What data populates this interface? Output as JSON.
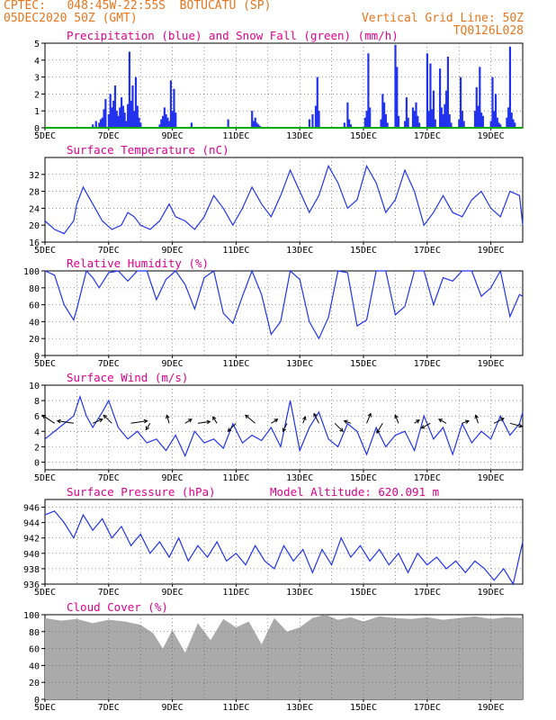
{
  "header": {
    "line1": "CPTEC:   048:45W-22:55S  BOTUCATU (SP)",
    "line2": "05DEC2020 50Z (GMT)",
    "grid_line": "Vertical Grid Line: 50Z",
    "code": "TQ0126L028"
  },
  "colors": {
    "header": "#e8761e",
    "title": "#e0008a",
    "series": "#2233ee",
    "snow": "#00aa00",
    "cloud": "#aaaaaa",
    "grid": "#555555"
  },
  "x_axis": {
    "dates": [
      "5DEC",
      "7DEC",
      "9DEC",
      "11DEC",
      "13DEC",
      "15DEC",
      "17DEC",
      "19DEC"
    ]
  },
  "chart_data": [
    {
      "id": "precip",
      "type": "bar",
      "title": "Precipitation (blue) and Snow Fall (green) (mm/h)",
      "ylim": [
        0,
        5
      ],
      "yticks": [
        0,
        1,
        2,
        3,
        4,
        5
      ],
      "series": [
        {
          "name": "blue",
          "x": [
            1.5,
            1.6,
            1.7,
            1.75,
            1.8,
            1.85,
            1.9,
            2.0,
            2.05,
            2.1,
            2.15,
            2.2,
            2.25,
            2.3,
            2.35,
            2.4,
            2.45,
            2.5,
            2.55,
            2.6,
            2.65,
            2.7,
            2.75,
            2.8,
            2.85,
            2.9,
            2.95,
            3.0,
            3.6,
            3.65,
            3.7,
            3.75,
            3.8,
            3.85,
            3.9,
            3.95,
            4.0,
            4.05,
            4.1,
            4.6,
            5.75,
            6.5,
            6.55,
            6.6,
            6.65,
            6.7,
            6.75,
            8.3,
            8.4,
            8.5,
            8.55,
            8.6,
            9.4,
            9.5,
            9.55,
            9.6,
            10.05,
            10.1,
            10.15,
            10.2,
            10.55,
            10.6,
            10.65,
            10.7,
            10.75,
            11.0,
            11.05,
            11.1,
            11.3,
            11.35,
            11.4,
            11.55,
            11.6,
            11.65,
            11.7,
            11.75,
            12.0,
            12.05,
            12.1,
            12.15,
            12.2,
            12.25,
            12.4,
            12.45,
            12.5,
            12.55,
            12.6,
            12.65,
            12.7,
            12.75,
            13.0,
            13.05,
            13.1,
            13.15,
            13.5,
            13.55,
            13.6,
            13.65,
            13.7,
            13.75,
            14.0,
            14.05,
            14.1,
            14.15,
            14.2,
            14.25,
            14.3,
            14.5,
            14.55,
            14.6,
            14.65,
            14.7,
            14.75
          ],
          "values": [
            0.2,
            0.4,
            0.3,
            0.5,
            0.6,
            1.1,
            1.7,
            0.8,
            2.0,
            1.2,
            1.6,
            2.5,
            1.0,
            0.7,
            1.2,
            1.8,
            1.3,
            0.9,
            0.4,
            1.4,
            4.5,
            1.6,
            2.5,
            1.0,
            3.0,
            1.3,
            0.6,
            0.3,
            0.2,
            0.5,
            0.7,
            1.2,
            0.8,
            0.6,
            0.4,
            2.8,
            1.0,
            2.3,
            0.9,
            0.3,
            0.5,
            1.0,
            0.4,
            0.6,
            0.3,
            0.2,
            0.1,
            0.5,
            0.8,
            1.3,
            3.0,
            1.0,
            0.3,
            1.5,
            0.5,
            0.2,
            0.6,
            1.0,
            4.4,
            1.2,
            0.5,
            2.0,
            1.5,
            0.8,
            0.3,
            4.9,
            3.6,
            0.7,
            0.4,
            1.8,
            0.6,
            1.2,
            1.0,
            1.5,
            0.7,
            0.3,
            4.4,
            1.0,
            3.8,
            1.1,
            2.2,
            0.5,
            3.5,
            1.2,
            0.8,
            1.4,
            2.2,
            4.2,
            0.8,
            0.3,
            0.5,
            3.0,
            1.0,
            0.4,
            1.0,
            2.4,
            1.3,
            3.6,
            0.9,
            0.7,
            0.4,
            3.0,
            1.0,
            2.0,
            0.6,
            0.3,
            0.2,
            0.6,
            1.2,
            4.8,
            0.9,
            0.5,
            0.3
          ]
        },
        {
          "name": "green",
          "x": [
            0,
            15
          ],
          "values": [
            0,
            0
          ]
        }
      ]
    },
    {
      "id": "temp",
      "type": "line",
      "title": "Surface Temperature (nC)",
      "ylim": [
        16,
        36
      ],
      "yticks": [
        16,
        20,
        24,
        28,
        32
      ],
      "x": [
        0.0,
        0.3,
        0.6,
        0.9,
        1.0,
        1.2,
        1.5,
        1.8,
        2.1,
        2.4,
        2.6,
        2.8,
        3.0,
        3.3,
        3.6,
        3.9,
        4.1,
        4.4,
        4.7,
        5.0,
        5.3,
        5.6,
        5.9,
        6.2,
        6.5,
        6.8,
        7.1,
        7.4,
        7.7,
        8.0,
        8.3,
        8.6,
        8.9,
        9.2,
        9.5,
        9.8,
        10.1,
        10.4,
        10.7,
        11.0,
        11.3,
        11.6,
        11.9,
        12.2,
        12.5,
        12.8,
        13.1,
        13.4,
        13.7,
        14.0,
        14.3,
        14.6,
        14.9,
        15.0
      ],
      "values": [
        21,
        19,
        18,
        21,
        25,
        29,
        25,
        21,
        19,
        20,
        23,
        22,
        20,
        19,
        21,
        25,
        22,
        21,
        19,
        22,
        27,
        24,
        20,
        24,
        29,
        25,
        22,
        27,
        33,
        28,
        23,
        27,
        34,
        30,
        24,
        26,
        34,
        30,
        23,
        26,
        33,
        28,
        20,
        23,
        27,
        23,
        22,
        26,
        28,
        24,
        22,
        28,
        27,
        20
      ]
    },
    {
      "id": "rh",
      "type": "line",
      "title": "Relative Humidity (%)",
      "ylim": [
        0,
        100
      ],
      "yticks": [
        0,
        20,
        40,
        60,
        80,
        100
      ],
      "x": [
        0.0,
        0.3,
        0.6,
        0.9,
        1.0,
        1.3,
        1.5,
        1.7,
        2.0,
        2.3,
        2.6,
        2.9,
        3.2,
        3.5,
        3.8,
        4.1,
        4.4,
        4.7,
        5.0,
        5.3,
        5.6,
        5.9,
        6.2,
        6.5,
        6.8,
        7.1,
        7.4,
        7.7,
        8.0,
        8.3,
        8.6,
        8.9,
        9.2,
        9.5,
        9.8,
        10.1,
        10.4,
        10.7,
        11.0,
        11.3,
        11.6,
        11.9,
        12.2,
        12.5,
        12.8,
        13.1,
        13.4,
        13.7,
        14.0,
        14.3,
        14.6,
        14.9,
        15.0
      ],
      "values": [
        100,
        95,
        60,
        42,
        55,
        100,
        92,
        80,
        98,
        100,
        88,
        100,
        100,
        66,
        90,
        100,
        84,
        55,
        92,
        100,
        50,
        38,
        70,
        100,
        72,
        25,
        40,
        100,
        90,
        40,
        20,
        45,
        100,
        98,
        35,
        42,
        100,
        100,
        48,
        58,
        100,
        100,
        60,
        92,
        88,
        100,
        100,
        70,
        80,
        100,
        46,
        72,
        70
      ]
    },
    {
      "id": "wind",
      "type": "line",
      "title": "Surface Wind (m/s)",
      "ylim": [
        -1,
        10
      ],
      "yticks": [
        0,
        2,
        4,
        6,
        8,
        10
      ],
      "x": [
        0.0,
        0.3,
        0.6,
        0.9,
        1.1,
        1.3,
        1.5,
        1.8,
        2.0,
        2.3,
        2.6,
        2.9,
        3.2,
        3.5,
        3.8,
        4.1,
        4.4,
        4.7,
        5.0,
        5.3,
        5.6,
        5.9,
        6.2,
        6.5,
        6.8,
        7.1,
        7.4,
        7.7,
        8.0,
        8.3,
        8.6,
        8.9,
        9.2,
        9.5,
        9.8,
        10.1,
        10.4,
        10.7,
        11.0,
        11.3,
        11.6,
        11.9,
        12.2,
        12.5,
        12.8,
        13.1,
        13.4,
        13.7,
        14.0,
        14.3,
        14.6,
        14.9,
        15.0
      ],
      "values": [
        3,
        4,
        5,
        6,
        8.5,
        6,
        4.5,
        6.5,
        8,
        4.5,
        3,
        4,
        2.5,
        3,
        1.5,
        3.5,
        0.8,
        4,
        2.5,
        3,
        1.8,
        5,
        2.5,
        3.5,
        2.8,
        4.5,
        2,
        8,
        1.5,
        4.5,
        6.5,
        3,
        2,
        5,
        4,
        1,
        4.5,
        2,
        3.5,
        4,
        1.5,
        6,
        3,
        4.5,
        1,
        5,
        2.5,
        4,
        3,
        6,
        3.5,
        5,
        6.5
      ],
      "arrows": {
        "x": [
          0.3,
          0.9,
          1.5,
          2.1,
          2.7,
          3.3,
          3.9,
          4.4,
          4.8,
          5.4,
          6.0,
          6.6,
          7.1,
          7.6,
          8.1,
          8.6,
          9.1,
          9.6,
          10.1,
          10.6,
          11.1,
          11.6,
          12.1,
          12.6,
          13.1,
          13.6,
          14.1,
          14.6
        ],
        "u": [
          -1.5,
          -2.0,
          1.2,
          -1.0,
          2.0,
          -0.5,
          -0.3,
          0.8,
          1.5,
          -0.5,
          -1.0,
          -1.2,
          0.8,
          -0.5,
          0.3,
          -0.6,
          1.0,
          -0.8,
          0.5,
          -0.7,
          -0.4,
          0.6,
          -1.1,
          -0.9,
          0.8,
          -0.3,
          1.2,
          1.5
        ],
        "v": [
          1.0,
          0.3,
          0.5,
          1.0,
          0.3,
          -0.8,
          1.0,
          0.5,
          0.2,
          0.8,
          -1.0,
          1.0,
          0.5,
          -1.0,
          0.8,
          1.2,
          -1.0,
          0.3,
          1.2,
          -1.2,
          1.0,
          0.4,
          -0.6,
          0.5,
          0.3,
          1.0,
          0.6,
          -0.4
        ]
      }
    },
    {
      "id": "pres",
      "type": "line",
      "title": "Surface Pressure (hPa)",
      "annotation": "Model Altitude: 620.091 m",
      "ylim": [
        936,
        947
      ],
      "yticks": [
        936,
        938,
        940,
        942,
        944,
        946
      ],
      "x": [
        0.0,
        0.3,
        0.6,
        0.9,
        1.2,
        1.5,
        1.8,
        2.1,
        2.4,
        2.7,
        3.0,
        3.3,
        3.6,
        3.9,
        4.2,
        4.5,
        4.8,
        5.1,
        5.4,
        5.7,
        6.0,
        6.3,
        6.6,
        6.9,
        7.2,
        7.5,
        7.8,
        8.1,
        8.4,
        8.7,
        9.0,
        9.3,
        9.6,
        9.9,
        10.2,
        10.5,
        10.8,
        11.1,
        11.4,
        11.7,
        12.0,
        12.3,
        12.6,
        12.9,
        13.2,
        13.5,
        13.8,
        14.1,
        14.4,
        14.7,
        15.0
      ],
      "values": [
        945,
        945.5,
        944,
        942,
        945,
        943,
        944.5,
        942,
        943.5,
        941,
        942.5,
        940,
        941.5,
        939.5,
        942,
        939,
        941,
        939.5,
        941.5,
        939,
        940,
        938.5,
        941,
        939,
        938,
        941,
        939,
        940.5,
        937.5,
        940.5,
        938.5,
        942,
        939.5,
        941,
        939,
        940.5,
        938.5,
        940,
        937.5,
        940,
        938.5,
        939.5,
        938,
        939,
        937.5,
        939,
        938,
        936.5,
        938,
        936,
        941.5
      ]
    },
    {
      "id": "cloud",
      "type": "area",
      "title": "Cloud Cover (%)",
      "ylim": [
        0,
        100
      ],
      "yticks": [
        0,
        20,
        40,
        60,
        80,
        100
      ],
      "x": [
        0.0,
        0.5,
        1.0,
        1.5,
        2.0,
        2.5,
        3.0,
        3.4,
        3.7,
        4.0,
        4.4,
        4.8,
        5.2,
        5.6,
        6.0,
        6.4,
        6.8,
        7.2,
        7.6,
        8.0,
        8.4,
        8.8,
        9.2,
        9.6,
        10.0,
        10.5,
        11.0,
        11.5,
        12.0,
        12.5,
        13.0,
        13.5,
        14.0,
        14.5,
        15.0
      ],
      "values": [
        96,
        93,
        95,
        90,
        94,
        92,
        88,
        78,
        60,
        82,
        55,
        90,
        70,
        95,
        85,
        92,
        65,
        96,
        80,
        85,
        96,
        100,
        94,
        97,
        92,
        98,
        96,
        95,
        97,
        94,
        96,
        98,
        95,
        97,
        96
      ]
    }
  ],
  "panel_placement": [
    {
      "top": 48,
      "h": 94
    },
    {
      "top": 175,
      "h": 94
    },
    {
      "top": 301,
      "h": 94
    },
    {
      "top": 428,
      "h": 94
    },
    {
      "top": 555,
      "h": 94
    },
    {
      "top": 683,
      "h": 94
    }
  ]
}
